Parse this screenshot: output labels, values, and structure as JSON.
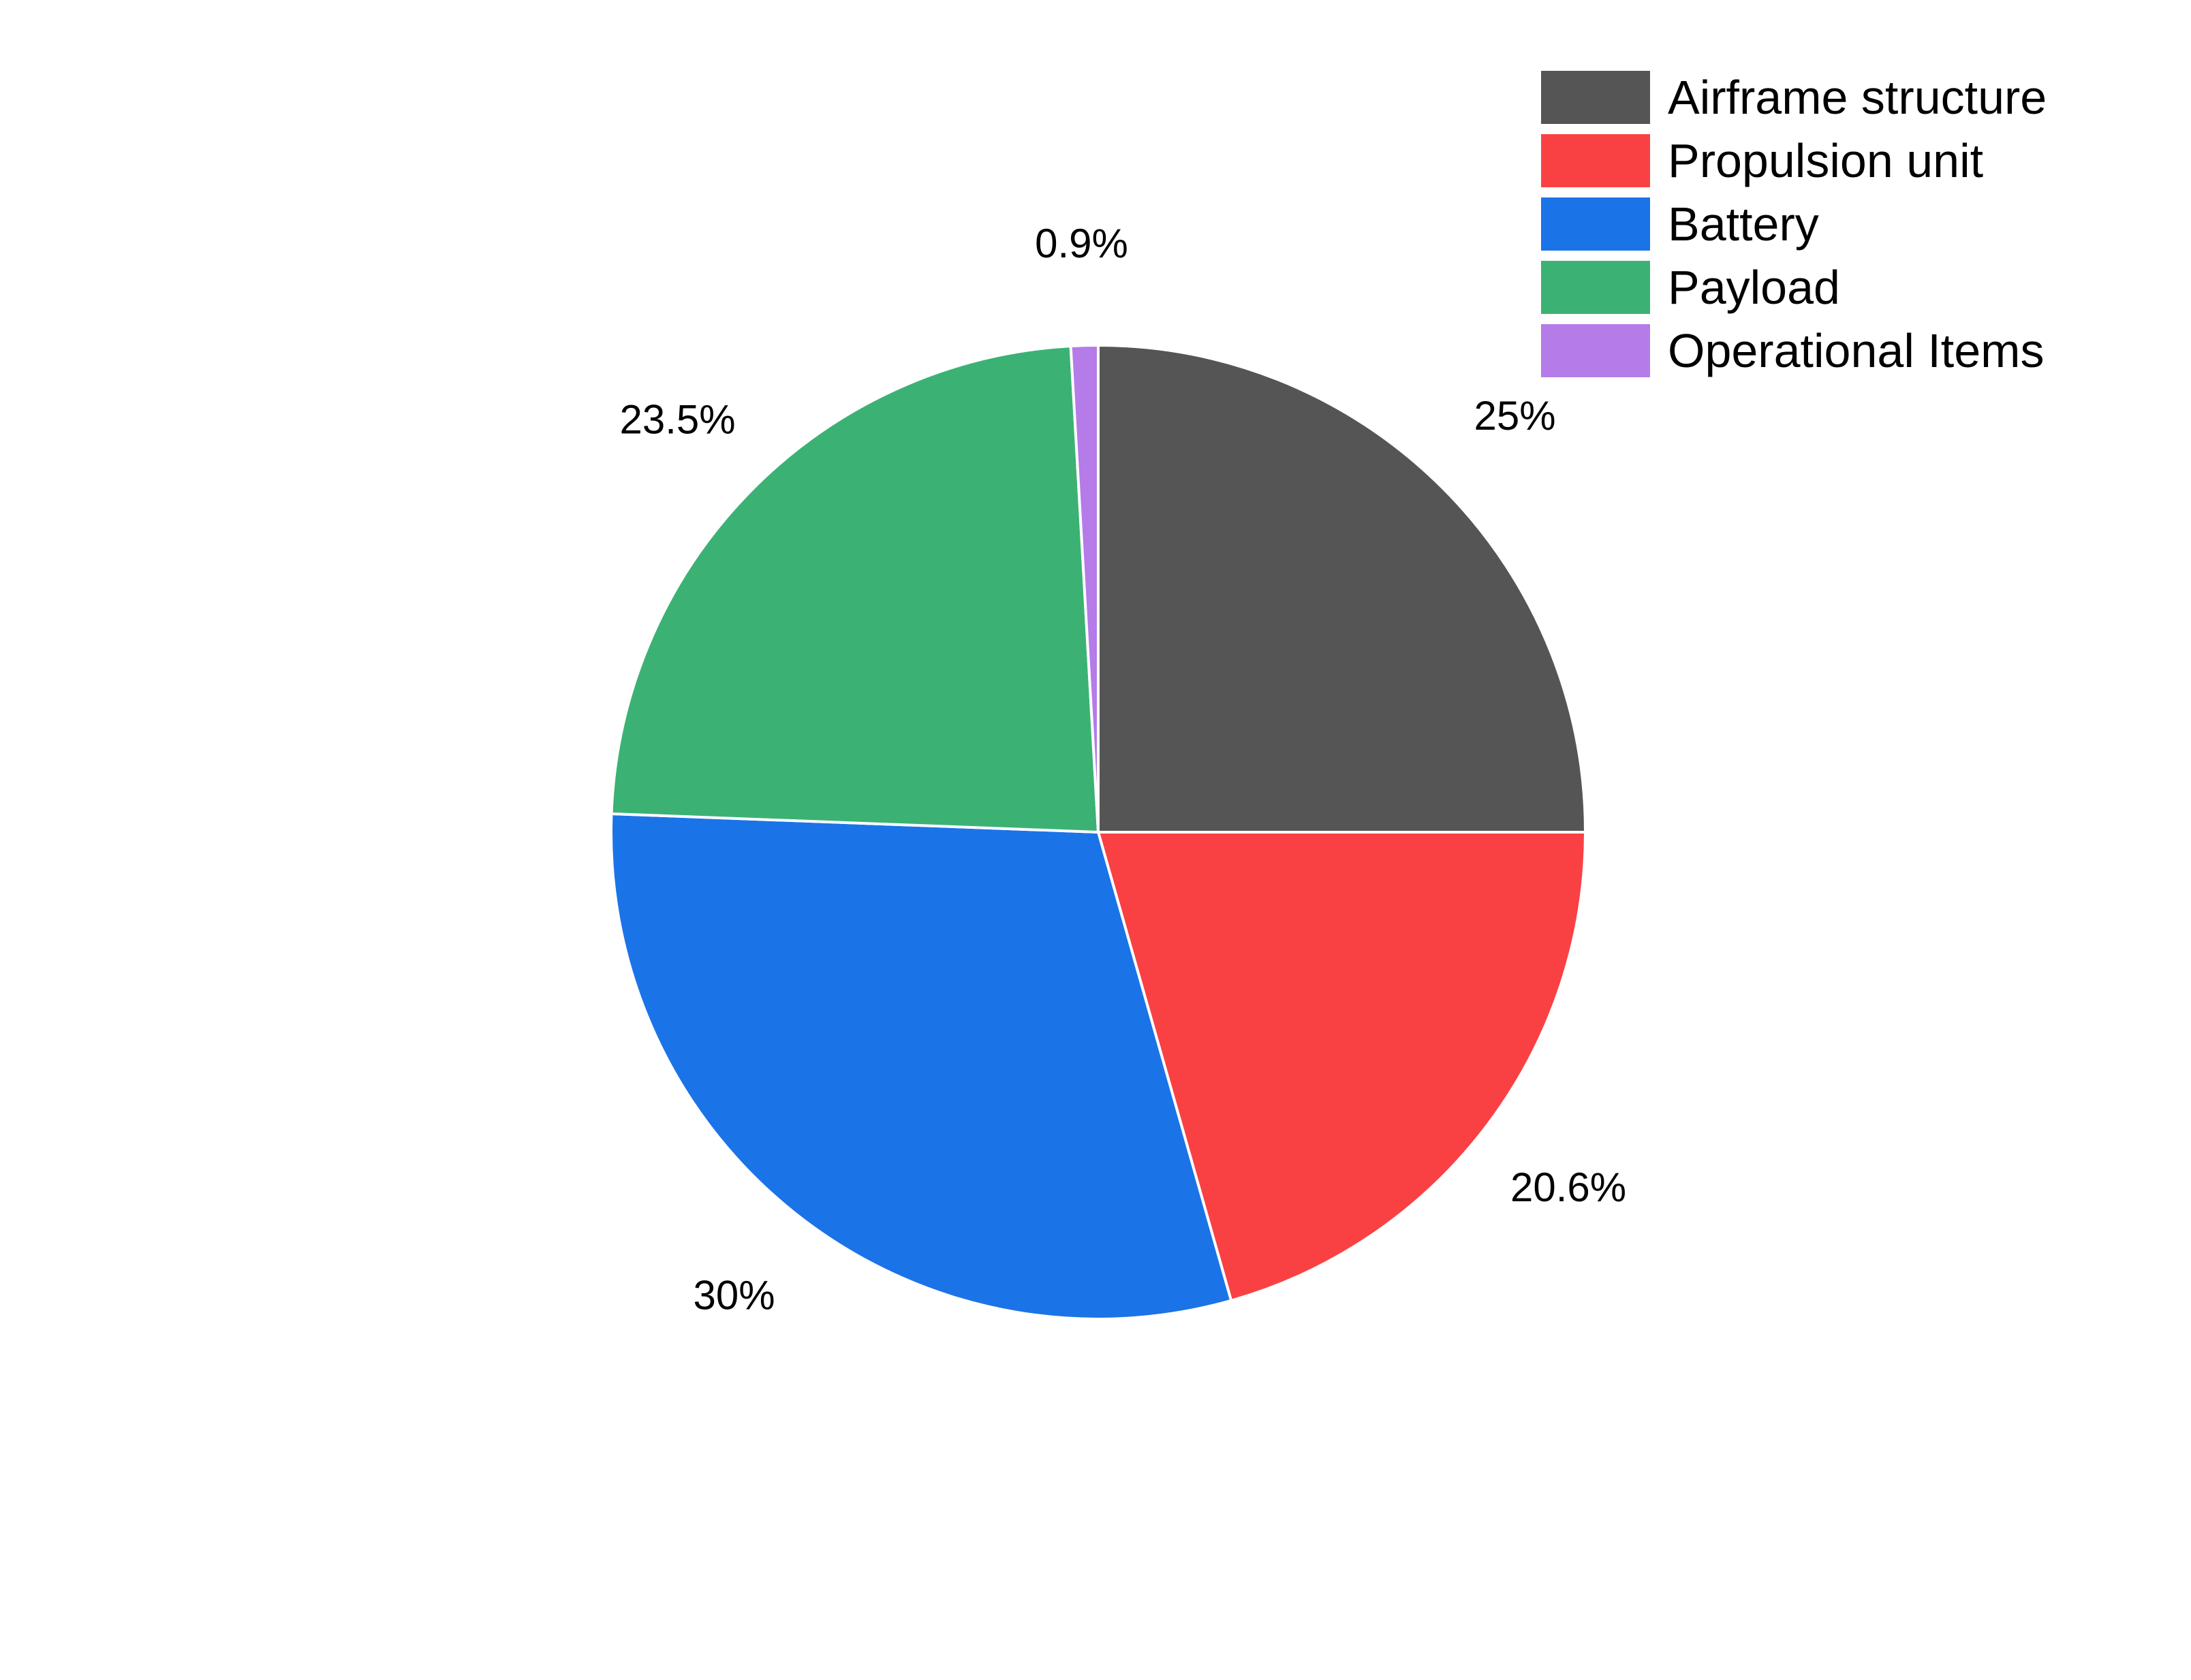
{
  "chart_data": {
    "type": "pie",
    "categories": [
      "Airframe structure",
      "Propulsion unit",
      "Battery",
      "Payload",
      "Operational Items"
    ],
    "values": [
      25,
      20.6,
      30,
      23.5,
      0.9
    ],
    "value_labels": [
      "25%",
      "20.6%",
      "30%",
      "23.5%",
      "0.9%"
    ],
    "colors": [
      "#555555",
      "#f94144",
      "#1b73e8",
      "#3bb273",
      "#b57be8"
    ],
    "start_angle": "12 o'clock",
    "direction": "clockwise",
    "slice_border_color": "#ffffff",
    "legend_position": "top-right",
    "title": ""
  }
}
